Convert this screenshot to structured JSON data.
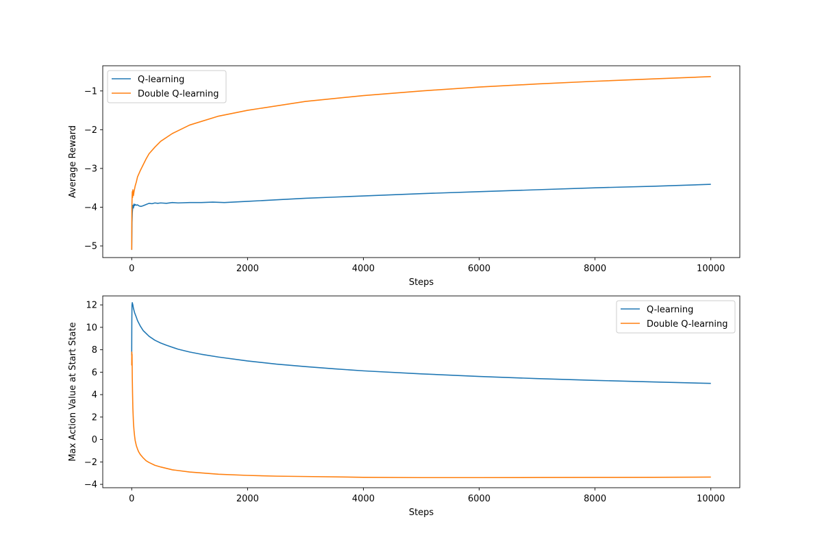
{
  "chart_data": [
    {
      "type": "line",
      "xlabel": "Steps",
      "ylabel": "Average Reward",
      "xlim": [
        -500,
        10500
      ],
      "ylim": [
        -5.3,
        -0.35
      ],
      "xticks": [
        0,
        2000,
        4000,
        6000,
        8000,
        10000
      ],
      "xtick_labels": [
        "0",
        "2000",
        "4000",
        "6000",
        "8000",
        "10000"
      ],
      "yticks": [
        -5,
        -4,
        -3,
        -2,
        -1
      ],
      "ytick_labels": [
        "−5",
        "−4",
        "−3",
        "−2",
        "−1"
      ],
      "grid": false,
      "legend_position": "upper left",
      "series": [
        {
          "name": "Q-learning",
          "color": "#1f77b4",
          "x": [
            0,
            5,
            10,
            15,
            20,
            30,
            40,
            50,
            60,
            80,
            100,
            130,
            160,
            200,
            250,
            300,
            350,
            400,
            450,
            500,
            600,
            700,
            800,
            1000,
            1200,
            1400,
            1600,
            2000,
            2500,
            3000,
            3500,
            4000,
            5000,
            6000,
            7000,
            8000,
            9000,
            10000
          ],
          "y": [
            -5.1,
            -4.4,
            -4.15,
            -4.05,
            -3.95,
            -4.02,
            -3.92,
            -3.96,
            -3.93,
            -3.95,
            -3.94,
            -3.97,
            -3.98,
            -3.96,
            -3.93,
            -3.9,
            -3.91,
            -3.89,
            -3.9,
            -3.89,
            -3.9,
            -3.88,
            -3.89,
            -3.88,
            -3.88,
            -3.87,
            -3.88,
            -3.85,
            -3.81,
            -3.77,
            -3.74,
            -3.71,
            -3.65,
            -3.6,
            -3.55,
            -3.5,
            -3.46,
            -3.41
          ]
        },
        {
          "name": "Double Q-learning",
          "color": "#ff7f0e",
          "x": [
            0,
            3,
            6,
            10,
            15,
            20,
            30,
            40,
            60,
            80,
            100,
            150,
            200,
            250,
            300,
            400,
            500,
            700,
            1000,
            1500,
            2000,
            3000,
            4000,
            5000,
            6000,
            7000,
            8000,
            9000,
            10000
          ],
          "y": [
            -5.1,
            -4.0,
            -3.8,
            -3.6,
            -3.75,
            -3.55,
            -3.7,
            -3.6,
            -3.45,
            -3.35,
            -3.22,
            -3.05,
            -2.9,
            -2.75,
            -2.62,
            -2.45,
            -2.3,
            -2.1,
            -1.88,
            -1.65,
            -1.5,
            -1.27,
            -1.12,
            -1.0,
            -0.9,
            -0.82,
            -0.75,
            -0.69,
            -0.63
          ]
        }
      ]
    },
    {
      "type": "line",
      "xlabel": "Steps",
      "ylabel": "Max Action Value at Start State",
      "xlim": [
        -500,
        10500
      ],
      "ylim": [
        -4.3,
        12.8
      ],
      "xticks": [
        0,
        2000,
        4000,
        6000,
        8000,
        10000
      ],
      "xtick_labels": [
        "0",
        "2000",
        "4000",
        "6000",
        "8000",
        "10000"
      ],
      "yticks": [
        -4,
        -2,
        0,
        2,
        4,
        6,
        8,
        10,
        12
      ],
      "ytick_labels": [
        "−4",
        "−2",
        "0",
        "2",
        "4",
        "6",
        "8",
        "10",
        "12"
      ],
      "grid": false,
      "legend_position": "upper right",
      "series": [
        {
          "name": "Q-learning",
          "color": "#1f77b4",
          "x": [
            0,
            2,
            5,
            10,
            20,
            30,
            50,
            80,
            100,
            150,
            200,
            300,
            400,
            500,
            600,
            800,
            1000,
            1200,
            1500,
            2000,
            2500,
            3000,
            3500,
            4000,
            5000,
            6000,
            7000,
            8000,
            9000,
            10000
          ],
          "y": [
            7.5,
            10.5,
            12.0,
            12.2,
            12.0,
            11.7,
            11.3,
            10.9,
            10.6,
            10.1,
            9.7,
            9.2,
            8.85,
            8.6,
            8.4,
            8.05,
            7.8,
            7.6,
            7.35,
            7.0,
            6.72,
            6.5,
            6.3,
            6.12,
            5.85,
            5.62,
            5.43,
            5.27,
            5.13,
            5.0
          ]
        },
        {
          "name": "Double Q-learning",
          "color": "#ff7f0e",
          "x": [
            0,
            2,
            4,
            6,
            10,
            15,
            20,
            30,
            40,
            50,
            60,
            80,
            100,
            120,
            150,
            200,
            250,
            300,
            400,
            500,
            700,
            1000,
            1500,
            2000,
            2500,
            3000,
            4000,
            5000,
            6000,
            7000,
            8000,
            9000,
            10000
          ],
          "y": [
            6.6,
            7.8,
            6.9,
            7.6,
            5.5,
            4.0,
            2.8,
            1.5,
            0.8,
            0.3,
            -0.1,
            -0.55,
            -0.85,
            -1.1,
            -1.35,
            -1.65,
            -1.9,
            -2.05,
            -2.3,
            -2.45,
            -2.7,
            -2.9,
            -3.1,
            -3.2,
            -3.27,
            -3.3,
            -3.37,
            -3.4,
            -3.4,
            -3.39,
            -3.38,
            -3.37,
            -3.35
          ]
        }
      ]
    }
  ]
}
